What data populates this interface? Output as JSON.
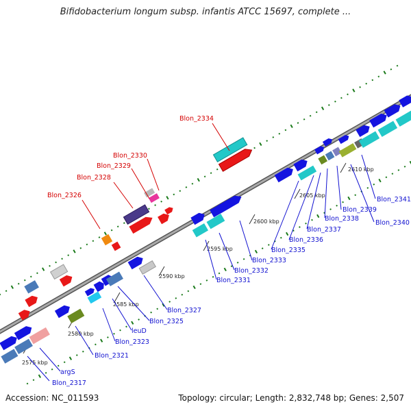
{
  "title": "Bifidobacterium longum subsp. infantis ATCC 15697, complete ...",
  "footer": {
    "accession": "Accession: NC_011593",
    "summary": "Topology: circular; Length: 2,832,748 bp; Genes: 2,507"
  },
  "colors": {
    "backbone": "#8a8a8a",
    "label_red": "#d40000",
    "label_blue": "#1010d0",
    "gc_dot": "#1a7a1a"
  },
  "ticks": [
    {
      "label": "2575 kbp"
    },
    {
      "label": "2580 kbp"
    },
    {
      "label": "2585 kbp"
    },
    {
      "label": "2590 kbp"
    },
    {
      "label": "2595 kbp"
    },
    {
      "label": "2600 kbp"
    },
    {
      "label": "2605 kbp"
    },
    {
      "label": "2610 kbp"
    }
  ],
  "labels_red": [
    {
      "text": "Blon_2334"
    },
    {
      "text": "Blon_2330"
    },
    {
      "text": "Blon_2329"
    },
    {
      "text": "Blon_2328"
    },
    {
      "text": "Blon_2326"
    }
  ],
  "labels_blue": [
    {
      "text": "Blon_2327"
    },
    {
      "text": "Blon_2325"
    },
    {
      "text": "leuD"
    },
    {
      "text": "Blon_2323"
    },
    {
      "text": "Blon_2321"
    },
    {
      "text": "argS"
    },
    {
      "text": "Blon_2317"
    },
    {
      "text": "Blon_2331"
    },
    {
      "text": "Blon_2332"
    },
    {
      "text": "Blon_2333"
    },
    {
      "text": "Blon_2335"
    },
    {
      "text": "Blon_2336"
    },
    {
      "text": "Blon_2337"
    },
    {
      "text": "Blon_2338"
    },
    {
      "text": "Blon_2339"
    },
    {
      "text": "Blon_2340"
    },
    {
      "text": "Blon_2341"
    }
  ]
}
